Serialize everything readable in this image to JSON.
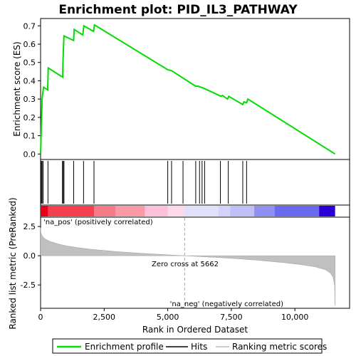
{
  "chart_data": {
    "type": "line",
    "title": "Enrichment plot: PID_IL3_PATHWAY",
    "top_panel": {
      "ylabel": "Enrichment score (ES)",
      "yticks": [
        "0.0",
        "0.1",
        "0.2",
        "0.3",
        "0.4",
        "0.5",
        "0.6",
        "0.7"
      ],
      "ylim": [
        -0.03,
        0.74
      ],
      "series_color": "#00dd00",
      "es_curve": {
        "x": [
          0,
          40,
          60,
          80,
          120,
          280,
          300,
          870,
          880,
          900,
          920,
          1300,
          1320,
          1660,
          1700,
          2080,
          2120,
          5000,
          5150,
          6100,
          6200,
          6300,
          6400,
          7100,
          7150,
          7350,
          7400,
          7950,
          8000,
          8100,
          8150,
          11580
        ],
        "y": [
          0.0,
          0.2,
          0.3,
          0.33,
          0.365,
          0.35,
          0.47,
          0.42,
          0.5,
          0.58,
          0.645,
          0.62,
          0.68,
          0.65,
          0.7,
          0.67,
          0.705,
          0.46,
          0.455,
          0.37,
          0.37,
          0.365,
          0.36,
          0.315,
          0.32,
          0.3,
          0.315,
          0.27,
          0.285,
          0.28,
          0.3,
          0.0
        ]
      },
      "hits": [
        30,
        60,
        100,
        290,
        860,
        890,
        920,
        1300,
        1690,
        2100,
        5000,
        5150,
        5600,
        6100,
        6250,
        6350,
        6450,
        7070,
        7380,
        7950,
        8100
      ]
    },
    "ranking_bar": {
      "segments": [
        {
          "from": 0,
          "to": 300,
          "color": "#e8001a"
        },
        {
          "from": 300,
          "to": 2100,
          "color": "#f5404f"
        },
        {
          "from": 2100,
          "to": 2950,
          "color": "#f77a89"
        },
        {
          "from": 2950,
          "to": 4100,
          "color": "#fa9aa6"
        },
        {
          "from": 4100,
          "to": 5000,
          "color": "#fcc0d8"
        },
        {
          "from": 5000,
          "to": 5650,
          "color": "#fdd8e8"
        },
        {
          "from": 5650,
          "to": 7000,
          "color": "#e0e0fb"
        },
        {
          "from": 7000,
          "to": 7450,
          "color": "#d2d2fa"
        },
        {
          "from": 7450,
          "to": 8400,
          "color": "#c0c0f8"
        },
        {
          "from": 8400,
          "to": 9200,
          "color": "#8f8ff4"
        },
        {
          "from": 9200,
          "to": 10950,
          "color": "#6a6aee"
        },
        {
          "from": 10950,
          "to": 11580,
          "color": "#2b00d8"
        }
      ]
    },
    "bottom_panel": {
      "ylabel": "Ranked list metric (PreRanked)",
      "yticks": [
        "2.5",
        "0.0",
        "-2.5"
      ],
      "ylim": [
        -4.5,
        3.3
      ],
      "metric_curve": {
        "x": [
          0,
          10,
          50,
          100,
          200,
          400,
          700,
          1000,
          1500,
          2000,
          3000,
          4000,
          5000,
          5662,
          6500,
          7500,
          8500,
          9500,
          10200,
          10800,
          11200,
          11400,
          11500,
          11560,
          11580
        ],
        "y": [
          2.4,
          2.0,
          1.75,
          1.6,
          1.4,
          1.2,
          1.0,
          0.85,
          0.68,
          0.55,
          0.35,
          0.2,
          0.08,
          0.0,
          -0.1,
          -0.22,
          -0.38,
          -0.58,
          -0.75,
          -0.95,
          -1.2,
          -1.5,
          -1.85,
          -2.5,
          -4.3
        ]
      },
      "zero_cross_label": "Zero cross at 5662",
      "zero_cross_x": 5662,
      "pos_label": "'na_pos' (positively correlated)",
      "neg_label": "'na_neg' (negatively correlated)",
      "pos_color": "#cc0000",
      "neg_color": "#0000cc"
    },
    "xlabel": "Rank in Ordered Dataset",
    "xticks": [
      0,
      2500,
      5000,
      7500,
      10000
    ],
    "xtick_labels": [
      "0",
      "2,500",
      "5,000",
      "7,500",
      "10,000"
    ],
    "xlim": [
      0,
      12150
    ],
    "legend": {
      "items": [
        {
          "label": "Enrichment profile",
          "color": "#00dd00"
        },
        {
          "label": "Hits",
          "color": "#000000"
        },
        {
          "label": "Ranking metric scores",
          "color": "#bbbbbb"
        }
      ]
    }
  }
}
